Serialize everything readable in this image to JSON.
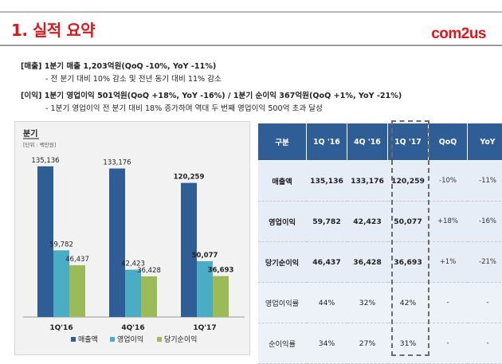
{
  "header": {
    "title": "1. 실적 요약",
    "logo": "com2us"
  },
  "summary": {
    "revenue_head": "[매출] 1분기 매출 1,203억원(QoQ -10%, YoY -11%)",
    "revenue_sub": "- 전 분기 대비 10% 감소 및 전년 동기 대비 11% 감소",
    "profit_head": "[이익] 1분기 영업이익 501억원(QoQ +18%, YoY -16%) / 1분기 순이익 367억원(QoQ +1%, YoY -21%)",
    "profit_sub": "- 1분기 영업이익 전 분기 대비 18% 증가하며 역대 두 번째 영업이익 500억 초과 달성"
  },
  "chart_data": {
    "type": "bar",
    "title": "분기",
    "subtitle": "[단위 : 백만원]",
    "categories": [
      "1Q'16",
      "4Q'16",
      "1Q'17"
    ],
    "series": [
      {
        "name": "매출액",
        "color": "#2f5d96",
        "values": [
          135136,
          133176,
          120259
        ],
        "labels": [
          "135,136",
          "133,176",
          "120,259"
        ]
      },
      {
        "name": "영업이익",
        "color": "#4bacc6",
        "values": [
          59782,
          42423,
          50077
        ],
        "labels": [
          "59,782",
          "42,423",
          "50,077"
        ]
      },
      {
        "name": "당기순이익",
        "color": "#9bbb59",
        "values": [
          46437,
          36428,
          36693
        ],
        "labels": [
          "46,437",
          "36,428",
          "36,693"
        ]
      }
    ],
    "ylim": [
      0,
      150000
    ],
    "legend_position": "bottom",
    "grid": false
  },
  "table": {
    "headers": [
      "구분",
      "1Q '16",
      "4Q '16",
      "1Q '17",
      "QoQ",
      "YoY"
    ],
    "rows": [
      [
        "매출액",
        "135,136",
        "133,176",
        "120,259",
        "-10%",
        "-11%"
      ],
      [
        "영업이익",
        "59,782",
        "42,423",
        "50,077",
        "+18%",
        "-16%"
      ],
      [
        "당기순이익",
        "46,437",
        "36,428",
        "36,693",
        "+1%",
        "-21%"
      ],
      [
        "영업이익률",
        "44%",
        "32%",
        "42%",
        "-",
        "-"
      ],
      [
        "순이익률",
        "34%",
        "27%",
        "31%",
        "-",
        "-"
      ]
    ]
  }
}
